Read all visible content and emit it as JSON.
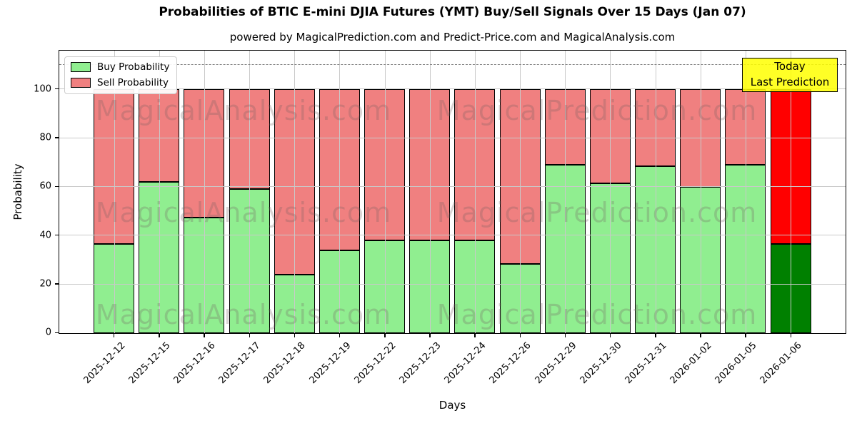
{
  "title": "Probabilities of BTIC E-mini DJIA Futures (YMT) Buy/Sell Signals Over 15 Days (Jan 07)",
  "subtitle": "powered by MagicalPrediction.com and Predict-Price.com and MagicalAnalysis.com",
  "axes": {
    "x_label": "Days",
    "y_label": "Probability",
    "y_ticks": [
      0,
      20,
      40,
      60,
      80,
      100
    ]
  },
  "legend": [
    {
      "label": "Buy Probability",
      "color": "#90EE90"
    },
    {
      "label": "Sell Probability",
      "color": "#F08080"
    }
  ],
  "annotation": {
    "line1": "Today",
    "line2": "Last Prediction",
    "bg_color": "#FFFF00"
  },
  "watermarks": {
    "left": "MagicalAnalysis.com",
    "right": "MagicalPrediction.com"
  },
  "chart_data": {
    "type": "bar",
    "stacked": true,
    "categories": [
      "2025-12-12",
      "2025-12-15",
      "2025-12-16",
      "2025-12-17",
      "2025-12-18",
      "2025-12-19",
      "2025-12-22",
      "2025-12-23",
      "2025-12-24",
      "2025-12-26",
      "2025-12-29",
      "2025-12-30",
      "2025-12-31",
      "2026-01-02",
      "2026-01-05",
      "2026-01-06"
    ],
    "series": [
      {
        "name": "Buy Probability",
        "color": "#90EE90",
        "values": [
          36.5,
          62,
          47.5,
          59,
          24,
          34,
          38,
          38,
          38,
          28.5,
          69,
          61.5,
          68.5,
          60,
          69,
          36.5
        ]
      },
      {
        "name": "Sell Probability",
        "color": "#F08080",
        "values": [
          63.5,
          38,
          52.5,
          41,
          76,
          66,
          62,
          62,
          62,
          71.5,
          31,
          38.5,
          31.5,
          40,
          31,
          63.5
        ]
      }
    ],
    "highlight_last_bar": {
      "buy_color": "#008000",
      "sell_color": "#FF0000"
    },
    "title": "Probabilities of BTIC E-mini DJIA Futures (YMT) Buy/Sell Signals Over 15 Days (Jan 07)",
    "xlabel": "Days",
    "ylabel": "Probability",
    "ylim": [
      0,
      116
    ],
    "dashed_reference_line_y": 110,
    "grid": true,
    "legend_position": "upper-left"
  }
}
